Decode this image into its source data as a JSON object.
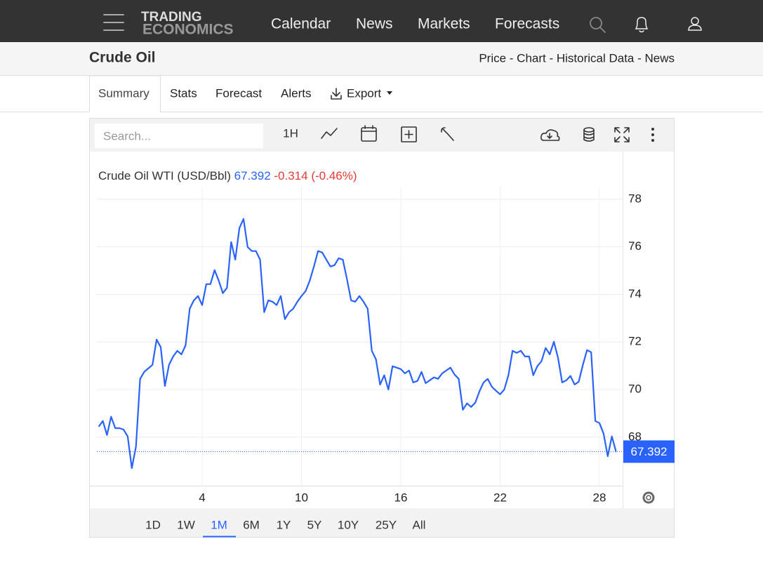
{
  "nav": {
    "logo": [
      "TRADING",
      "ECONOMICS"
    ],
    "items": [
      "Calendar",
      "News",
      "Markets",
      "Forecasts"
    ]
  },
  "header": {
    "title": "Crude Oil",
    "links": "Price - Chart - Historical Data - News"
  },
  "tabs": [
    "Summary",
    "Stats",
    "Forecast",
    "Alerts",
    "Export"
  ],
  "toolbar": {
    "search_placeholder": "Search...",
    "interval": "1H"
  },
  "chart_data": {
    "type": "line",
    "title": "Crude Oil WTI (USD/Bbl)",
    "last": 67.392,
    "change": -0.314,
    "change_percent": "(-0.46%)",
    "color": "#2962ff",
    "grid": true,
    "xlim": [
      -2.36,
      29.4
    ],
    "ylim": [
      65.96,
      80.0
    ],
    "xticks": [
      4,
      10,
      16,
      22,
      28
    ],
    "yticks": [
      68,
      70,
      72,
      74,
      76,
      78
    ],
    "x": [
      -2.25,
      -2,
      -1.75,
      -1.5,
      -1.25,
      -1,
      -0.75,
      -0.5,
      -0.25,
      0,
      0.25,
      0.5,
      0.75,
      1,
      1.25,
      1.5,
      1.75,
      2,
      2.25,
      2.5,
      2.75,
      3,
      3.25,
      3.5,
      3.75,
      4,
      4.25,
      4.5,
      4.75,
      5,
      5.25,
      5.5,
      5.75,
      6,
      6.25,
      6.5,
      6.75,
      7,
      7.25,
      7.5,
      7.75,
      8,
      8.25,
      8.5,
      8.75,
      9,
      9.25,
      9.5,
      9.75,
      10,
      10.25,
      10.5,
      10.75,
      11,
      11.25,
      11.5,
      11.75,
      12,
      12.25,
      12.5,
      12.75,
      13,
      13.25,
      13.5,
      13.75,
      14,
      14.25,
      14.5,
      14.75,
      15,
      15.25,
      15.5,
      15.75,
      16,
      16.25,
      16.5,
      16.75,
      17,
      17.25,
      17.5,
      17.75,
      18,
      18.25,
      18.5,
      18.75,
      19,
      19.25,
      19.5,
      19.75,
      20,
      20.25,
      20.5,
      20.75,
      21,
      21.25,
      21.5,
      21.75,
      22,
      22.25,
      22.5,
      22.75,
      23,
      23.25,
      23.5,
      23.75,
      24,
      24.25,
      24.5,
      24.75,
      25,
      25.25,
      25.5,
      25.75,
      26,
      26.25,
      26.5,
      26.75,
      27,
      27.25,
      27.5,
      27.75,
      28,
      28.25,
      28.5,
      28.75,
      29
    ],
    "values": [
      68.44,
      68.68,
      68.09,
      68.86,
      68.38,
      68.38,
      68.32,
      68.03,
      66.7,
      67.6,
      70.45,
      70.74,
      70.89,
      71.04,
      72.1,
      71.78,
      70.15,
      71.04,
      71.39,
      71.63,
      71.48,
      71.86,
      73.4,
      73.75,
      73.93,
      73.55,
      74.43,
      74.43,
      75.02,
      74.58,
      74.05,
      74.28,
      76.2,
      75.46,
      76.79,
      77.17,
      75.99,
      75.82,
      75.82,
      75.46,
      73.25,
      73.75,
      73.69,
      73.55,
      73.93,
      72.96,
      73.25,
      73.4,
      73.69,
      73.93,
      74.14,
      74.58,
      75.17,
      75.82,
      75.76,
      75.46,
      75.17,
      75.23,
      75.52,
      75.46,
      74.64,
      73.75,
      73.69,
      73.93,
      73.69,
      73.4,
      71.63,
      71.27,
      70.21,
      70.6,
      70.0,
      70.98,
      70.92,
      70.86,
      70.68,
      70.8,
      70.3,
      70.36,
      70.74,
      70.27,
      70.39,
      70.51,
      70.45,
      70.68,
      70.8,
      70.92,
      70.63,
      70.45,
      69.15,
      69.42,
      69.27,
      69.45,
      69.92,
      70.3,
      70.45,
      70.12,
      69.95,
      69.8,
      70.0,
      70.6,
      71.63,
      71.54,
      71.63,
      71.39,
      71.39,
      70.6,
      70.98,
      71.19,
      71.75,
      71.48,
      72.01,
      71.33,
      70.3,
      70.39,
      70.57,
      70.21,
      70.33,
      71.04,
      71.66,
      71.57,
      68.68,
      68.59,
      68.15,
      67.2,
      68.03,
      67.392
    ]
  },
  "ranges": [
    "1D",
    "1W",
    "1M",
    "6M",
    "1Y",
    "5Y",
    "10Y",
    "25Y",
    "All"
  ],
  "active_range": 2
}
